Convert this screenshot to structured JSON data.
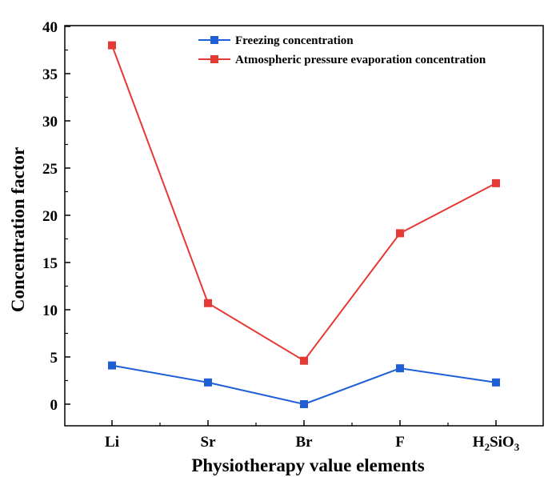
{
  "chart_data": {
    "type": "line",
    "title": "",
    "xlabel": "Physiotherapy value elements",
    "ylabel": "Concentration factor",
    "categories": [
      "Li",
      "Sr",
      "Br",
      "F",
      "H2SiO3"
    ],
    "category_labels": [
      {
        "base": "Li",
        "parts": []
      },
      {
        "base": "Sr",
        "parts": []
      },
      {
        "base": "Br",
        "parts": []
      },
      {
        "base": "F",
        "parts": []
      },
      {
        "base": "H",
        "parts": [
          [
            "2",
            "sub"
          ],
          [
            "SiO",
            "normal"
          ],
          [
            "3",
            "sub"
          ]
        ]
      }
    ],
    "ylim": [
      0,
      40
    ],
    "yticks": [
      0,
      5,
      10,
      15,
      20,
      25,
      30,
      35,
      40
    ],
    "grid": false,
    "legend_position": "top-right",
    "series": [
      {
        "name": "Freezing concentration",
        "color": "#1f5fd6",
        "values": [
          4.1,
          2.3,
          0.0,
          3.8,
          2.3
        ]
      },
      {
        "name": "Atmospheric pressure evaporation concentration",
        "color": "#e53935",
        "values": [
          38.0,
          10.7,
          4.6,
          18.1,
          23.4
        ]
      }
    ]
  }
}
